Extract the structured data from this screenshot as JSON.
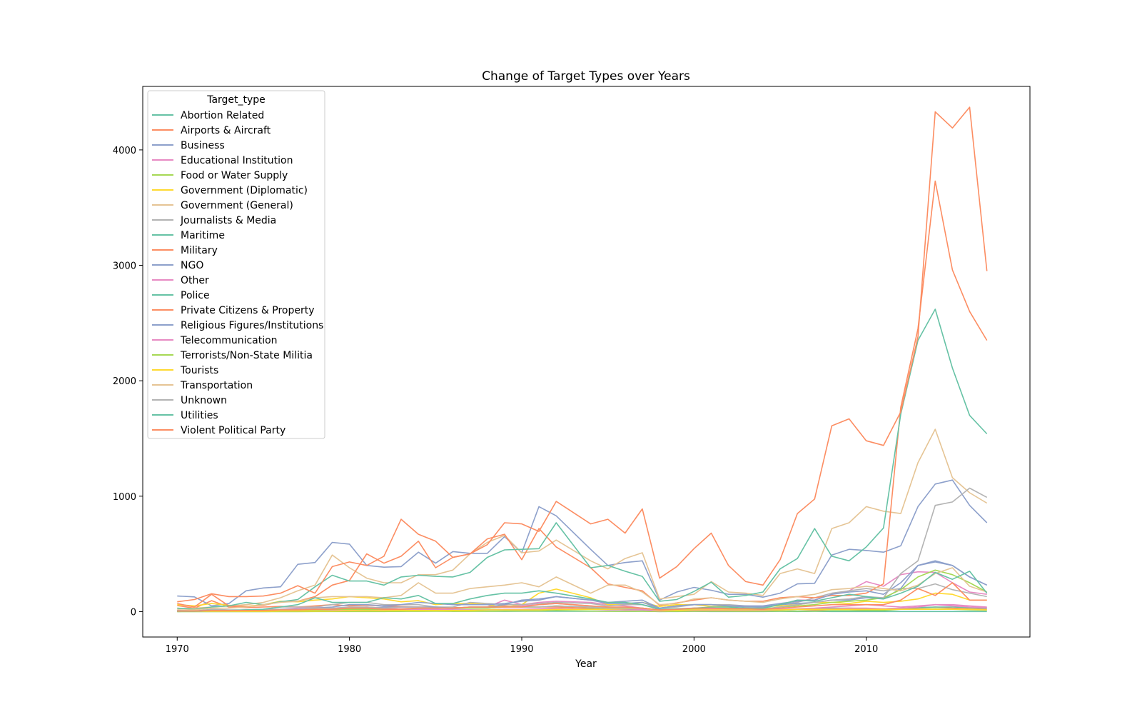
{
  "chart_data": {
    "type": "line",
    "title": "Change of Target Types over Years",
    "xlabel": "Year",
    "ylabel": "",
    "xlim": [
      1968,
      2019.5
    ],
    "ylim": [
      -220,
      4550
    ],
    "xticks": [
      1970,
      1980,
      1990,
      2000,
      2010
    ],
    "yticks": [
      0,
      1000,
      2000,
      3000,
      4000
    ],
    "grid": false,
    "legend": {
      "title": "Target_type",
      "placement": "top-left"
    },
    "x": [
      1970,
      1971,
      1972,
      1973,
      1974,
      1975,
      1976,
      1977,
      1978,
      1979,
      1980,
      1981,
      1982,
      1983,
      1984,
      1985,
      1986,
      1987,
      1988,
      1989,
      1990,
      1991,
      1992,
      1994,
      1995,
      1996,
      1997,
      1998,
      1999,
      2000,
      2001,
      2002,
      2003,
      2004,
      2005,
      2006,
      2007,
      2008,
      2009,
      2010,
      2011,
      2012,
      2013,
      2014,
      2015,
      2016,
      2017
    ],
    "series": [
      {
        "name": "Abortion Related",
        "color": "#66c2a5",
        "values": [
          0,
          1,
          1,
          1,
          1,
          1,
          3,
          2,
          8,
          3,
          2,
          2,
          3,
          2,
          8,
          18,
          3,
          5,
          3,
          2,
          3,
          3,
          3,
          3,
          3,
          2,
          3,
          1,
          1,
          2,
          1,
          1,
          1,
          1,
          2,
          1,
          2,
          1,
          1,
          1,
          1,
          1,
          1,
          1,
          1,
          1,
          1
        ]
      },
      {
        "name": "Airports & Aircraft",
        "color": "#fc8d62",
        "values": [
          52,
          30,
          95,
          40,
          35,
          40,
          45,
          40,
          50,
          60,
          50,
          55,
          50,
          45,
          40,
          40,
          35,
          35,
          40,
          50,
          40,
          40,
          40,
          30,
          20,
          15,
          15,
          10,
          15,
          15,
          10,
          10,
          10,
          10,
          20,
          20,
          15,
          20,
          20,
          15,
          20,
          25,
          30,
          40,
          30,
          25,
          20
        ]
      },
      {
        "name": "Business",
        "color": "#8da0cb",
        "values": [
          135,
          128,
          50,
          70,
          180,
          205,
          215,
          410,
          425,
          600,
          585,
          400,
          385,
          390,
          515,
          420,
          520,
          505,
          505,
          650,
          510,
          910,
          830,
          540,
          400,
          425,
          440,
          100,
          170,
          210,
          185,
          150,
          150,
          125,
          160,
          240,
          245,
          490,
          540,
          530,
          515,
          570,
          910,
          1105,
          1140,
          920,
          770
        ]
      },
      {
        "name": "Educational Institution",
        "color": "#e78ac3",
        "values": [
          3,
          5,
          10,
          8,
          15,
          20,
          20,
          30,
          40,
          30,
          30,
          40,
          30,
          40,
          40,
          30,
          25,
          30,
          40,
          100,
          60,
          80,
          90,
          80,
          60,
          50,
          30,
          15,
          20,
          30,
          30,
          25,
          25,
          35,
          60,
          100,
          100,
          150,
          180,
          260,
          220,
          320,
          345,
          340,
          250,
          170,
          150
        ]
      },
      {
        "name": "Food or Water Supply",
        "color": "#a6d854",
        "values": [
          0,
          0,
          0,
          0,
          0,
          0,
          0,
          0,
          1,
          1,
          1,
          1,
          1,
          2,
          2,
          3,
          2,
          2,
          3,
          5,
          5,
          5,
          10,
          5,
          3,
          3,
          3,
          1,
          2,
          3,
          3,
          3,
          2,
          3,
          5,
          5,
          5,
          8,
          8,
          10,
          10,
          20,
          20,
          25,
          20,
          15,
          12
        ]
      },
      {
        "name": "Government (Diplomatic)",
        "color": "#ffd92f",
        "values": [
          60,
          50,
          70,
          55,
          45,
          60,
          90,
          85,
          100,
          110,
          130,
          120,
          110,
          85,
          95,
          60,
          70,
          70,
          60,
          40,
          60,
          160,
          195,
          120,
          60,
          60,
          80,
          45,
          60,
          60,
          45,
          45,
          45,
          45,
          50,
          60,
          80,
          80,
          70,
          90,
          80,
          90,
          110,
          160,
          150,
          100,
          100
        ]
      },
      {
        "name": "Government (General)",
        "color": "#e5c494",
        "values": [
          25,
          30,
          40,
          50,
          60,
          80,
          120,
          180,
          230,
          490,
          380,
          290,
          250,
          250,
          320,
          320,
          360,
          500,
          600,
          660,
          510,
          525,
          620,
          440,
          370,
          460,
          510,
          110,
          130,
          150,
          260,
          170,
          160,
          140,
          330,
          370,
          330,
          720,
          770,
          910,
          870,
          850,
          1290,
          1580,
          1160,
          1030,
          940
        ]
      },
      {
        "name": "Journalists & Media",
        "color": "#b3b3b3",
        "values": [
          5,
          5,
          20,
          15,
          15,
          20,
          40,
          40,
          40,
          60,
          80,
          80,
          60,
          60,
          60,
          40,
          40,
          80,
          70,
          60,
          60,
          70,
          80,
          70,
          50,
          60,
          60,
          30,
          40,
          60,
          60,
          60,
          50,
          40,
          60,
          80,
          120,
          160,
          180,
          200,
          180,
          200,
          200,
          240,
          190,
          160,
          130
        ]
      },
      {
        "name": "Maritime",
        "color": "#66c2a5",
        "values": [
          5,
          3,
          5,
          5,
          8,
          8,
          5,
          5,
          8,
          10,
          10,
          10,
          12,
          12,
          20,
          15,
          15,
          15,
          15,
          15,
          15,
          15,
          20,
          25,
          20,
          20,
          15,
          8,
          10,
          15,
          15,
          12,
          10,
          10,
          15,
          20,
          25,
          30,
          30,
          25,
          25,
          30,
          35,
          40,
          40,
          35,
          30
        ]
      },
      {
        "name": "Military",
        "color": "#fc8d62",
        "values": [
          70,
          40,
          150,
          50,
          45,
          55,
          85,
          90,
          130,
          230,
          270,
          500,
          420,
          480,
          610,
          380,
          470,
          500,
          630,
          670,
          450,
          720,
          560,
          380,
          240,
          210,
          180,
          55,
          75,
          100,
          120,
          100,
          90,
          90,
          120,
          130,
          120,
          140,
          140,
          160,
          240,
          1770,
          2450,
          3730,
          2960,
          2600,
          2350
        ]
      },
      {
        "name": "NGO",
        "color": "#8da0cb",
        "values": [
          3,
          2,
          3,
          3,
          5,
          5,
          10,
          10,
          15,
          20,
          30,
          30,
          40,
          40,
          40,
          40,
          30,
          40,
          40,
          60,
          100,
          110,
          130,
          100,
          80,
          90,
          100,
          30,
          50,
          60,
          60,
          50,
          40,
          40,
          60,
          70,
          80,
          100,
          100,
          120,
          110,
          200,
          400,
          430,
          400,
          300,
          230
        ]
      },
      {
        "name": "Other",
        "color": "#e78ac3",
        "values": [
          3,
          3,
          5,
          5,
          5,
          5,
          10,
          10,
          15,
          15,
          15,
          20,
          15,
          15,
          20,
          20,
          15,
          15,
          15,
          20,
          20,
          25,
          30,
          20,
          15,
          15,
          15,
          5,
          10,
          10,
          10,
          10,
          10,
          10,
          15,
          20,
          20,
          25,
          30,
          30,
          25,
          30,
          40,
          60,
          50,
          40,
          35
        ]
      },
      {
        "name": "Police",
        "color": "#66c2a5",
        "values": [
          30,
          20,
          40,
          50,
          80,
          60,
          85,
          105,
          215,
          315,
          265,
          265,
          230,
          300,
          315,
          305,
          300,
          340,
          470,
          535,
          540,
          545,
          770,
          380,
          400,
          350,
          305,
          90,
          105,
          175,
          255,
          125,
          140,
          170,
          370,
          460,
          720,
          480,
          440,
          560,
          725,
          1710,
          2350,
          2620,
          2110,
          1700,
          1540
        ]
      },
      {
        "name": "Private Citizens & Property",
        "color": "#fc8d62",
        "values": [
          85,
          105,
          155,
          130,
          130,
          135,
          160,
          225,
          160,
          390,
          430,
          400,
          480,
          800,
          670,
          610,
          470,
          500,
          580,
          770,
          760,
          695,
          955,
          760,
          800,
          680,
          890,
          290,
          390,
          545,
          680,
          400,
          260,
          230,
          450,
          850,
          975,
          1610,
          1670,
          1480,
          1440,
          1730,
          2380,
          4330,
          4190,
          4370,
          2950
        ]
      },
      {
        "name": "Religious Figures/Institutions",
        "color": "#8da0cb",
        "values": [
          10,
          8,
          10,
          10,
          15,
          15,
          20,
          20,
          30,
          40,
          60,
          60,
          50,
          60,
          80,
          70,
          60,
          60,
          60,
          70,
          90,
          100,
          130,
          100,
          70,
          70,
          80,
          30,
          50,
          60,
          60,
          50,
          50,
          50,
          70,
          90,
          100,
          150,
          170,
          180,
          150,
          250,
          400,
          440,
          400,
          300,
          230
        ]
      },
      {
        "name": "Telecommunication",
        "color": "#e78ac3",
        "values": [
          3,
          3,
          5,
          5,
          5,
          8,
          10,
          10,
          15,
          20,
          25,
          25,
          25,
          25,
          30,
          30,
          30,
          30,
          30,
          40,
          50,
          60,
          70,
          50,
          30,
          30,
          20,
          10,
          20,
          20,
          20,
          20,
          20,
          15,
          20,
          25,
          30,
          40,
          50,
          60,
          50,
          40,
          50,
          60,
          60,
          50,
          40
        ]
      },
      {
        "name": "Terrorists/Non-State Militia",
        "color": "#a6d854",
        "values": [
          5,
          3,
          5,
          5,
          5,
          5,
          10,
          10,
          15,
          20,
          20,
          20,
          20,
          20,
          30,
          30,
          30,
          30,
          30,
          40,
          40,
          40,
          50,
          40,
          30,
          30,
          30,
          15,
          20,
          25,
          30,
          30,
          30,
          25,
          40,
          50,
          60,
          80,
          90,
          100,
          120,
          190,
          300,
          360,
          320,
          250,
          170
        ]
      },
      {
        "name": "Tourists",
        "color": "#ffd92f",
        "values": [
          2,
          2,
          3,
          3,
          3,
          3,
          5,
          5,
          5,
          5,
          8,
          8,
          8,
          10,
          10,
          10,
          10,
          10,
          15,
          15,
          15,
          15,
          20,
          20,
          20,
          25,
          30,
          10,
          10,
          15,
          15,
          15,
          15,
          15,
          15,
          20,
          20,
          20,
          20,
          20,
          20,
          20,
          20,
          20,
          20,
          20,
          15
        ]
      },
      {
        "name": "Transportation",
        "color": "#e5c494",
        "values": [
          15,
          15,
          30,
          30,
          40,
          60,
          80,
          90,
          120,
          130,
          130,
          130,
          120,
          140,
          250,
          160,
          160,
          200,
          215,
          230,
          250,
          215,
          300,
          160,
          230,
          230,
          170,
          60,
          70,
          110,
          120,
          100,
          90,
          80,
          110,
          130,
          150,
          190,
          200,
          220,
          200,
          180,
          230,
          330,
          380,
          220,
          170
        ]
      },
      {
        "name": "Unknown",
        "color": "#b3b3b3",
        "values": [
          10,
          5,
          10,
          10,
          10,
          15,
          20,
          20,
          30,
          30,
          40,
          40,
          30,
          40,
          40,
          30,
          30,
          40,
          40,
          40,
          40,
          40,
          50,
          40,
          30,
          30,
          30,
          15,
          20,
          30,
          30,
          25,
          25,
          20,
          40,
          60,
          80,
          100,
          110,
          130,
          120,
          330,
          440,
          920,
          950,
          1070,
          990
        ]
      },
      {
        "name": "Utilities",
        "color": "#66c2a5",
        "values": [
          3,
          3,
          10,
          10,
          15,
          20,
          40,
          60,
          120,
          80,
          80,
          80,
          120,
          110,
          140,
          70,
          70,
          110,
          140,
          160,
          160,
          180,
          160,
          110,
          80,
          80,
          60,
          20,
          25,
          30,
          40,
          40,
          30,
          30,
          60,
          100,
          90,
          120,
          150,
          130,
          110,
          160,
          220,
          340,
          280,
          350,
          160
        ]
      },
      {
        "name": "Violent Political Party",
        "color": "#fc8d62",
        "values": [
          5,
          5,
          10,
          10,
          10,
          10,
          15,
          15,
          20,
          20,
          30,
          30,
          20,
          20,
          30,
          30,
          30,
          40,
          40,
          40,
          40,
          60,
          70,
          50,
          40,
          40,
          30,
          15,
          20,
          30,
          30,
          25,
          25,
          20,
          30,
          40,
          50,
          60,
          60,
          60,
          60,
          100,
          200,
          140,
          250,
          100,
          100
        ]
      }
    ]
  }
}
